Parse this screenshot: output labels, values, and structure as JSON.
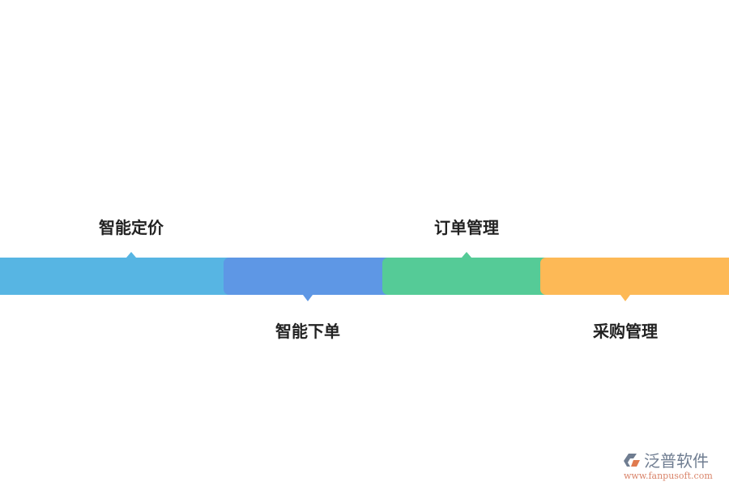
{
  "steps": [
    {
      "label": "智能定价",
      "color": "#57b5e3",
      "pointer": "up"
    },
    {
      "label": "智能下单",
      "color": "#5e97e5",
      "pointer": "down"
    },
    {
      "label": "订单管理",
      "color": "#55cb97",
      "pointer": "up"
    },
    {
      "label": "采购管理",
      "color": "#fdb956",
      "pointer": "down"
    }
  ],
  "logo": {
    "name": "泛普软件",
    "url": "www.fanpusoft.com"
  }
}
